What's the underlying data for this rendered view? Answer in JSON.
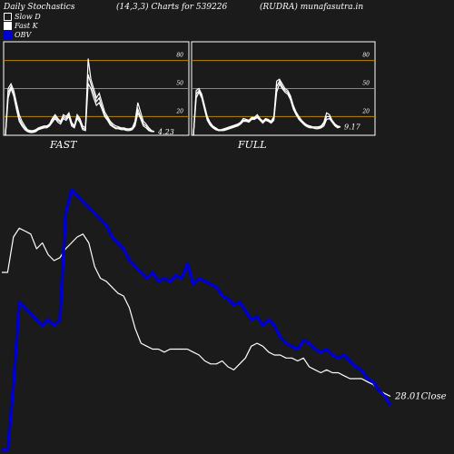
{
  "header": {
    "left": "Daily Stochastics",
    "middle": "(14,3,3) Charts for 539226",
    "right": "(RUDRA) munafasutra.in"
  },
  "legend": {
    "slow_d": "Slow  D",
    "fast_k": "Fast K",
    "obv": "OBV"
  },
  "colors": {
    "background": "#1b1b1b",
    "panel_border": "#ffffff",
    "level_line": "#b8860b",
    "stoch_line": "#ffffff",
    "price_line": "#ffffff",
    "obv_line": "#0000cc"
  },
  "chart_data": [
    {
      "type": "line",
      "name": "FAST",
      "title": "FAST",
      "ylim": [
        0,
        100
      ],
      "levels": [
        20,
        50,
        80
      ],
      "tick_labels": [
        "20",
        "50",
        "80"
      ],
      "last_value_label": "4.23",
      "series": [
        {
          "values": [
            0,
            50,
            55,
            48,
            35,
            22,
            15,
            10,
            6,
            5,
            5,
            6,
            8,
            9,
            10,
            10,
            12,
            18,
            22,
            18,
            15,
            22,
            20,
            24,
            14,
            10,
            22,
            18,
            10,
            8,
            82,
            60,
            50,
            40,
            45,
            35,
            25,
            20,
            15,
            12,
            10,
            9,
            8,
            8,
            7,
            7,
            8,
            15,
            35,
            25,
            15,
            12,
            8,
            5,
            4
          ]
        },
        {
          "values": [
            0,
            45,
            52,
            44,
            30,
            18,
            12,
            8,
            5,
            4,
            4,
            5,
            7,
            8,
            9,
            9,
            11,
            16,
            20,
            16,
            14,
            20,
            18,
            22,
            12,
            9,
            20,
            16,
            8,
            6,
            65,
            55,
            45,
            36,
            40,
            30,
            22,
            18,
            13,
            10,
            8,
            8,
            7,
            7,
            6,
            6,
            7,
            12,
            28,
            20,
            12,
            10,
            6,
            4,
            4
          ]
        },
        {
          "values": [
            0,
            40,
            50,
            42,
            28,
            15,
            10,
            6,
            4,
            3,
            3,
            4,
            6,
            7,
            8,
            8,
            10,
            14,
            18,
            14,
            12,
            18,
            16,
            20,
            10,
            8,
            18,
            14,
            6,
            5,
            55,
            50,
            40,
            32,
            35,
            28,
            20,
            16,
            11,
            9,
            7,
            7,
            6,
            6,
            5,
            5,
            6,
            10,
            24,
            18,
            10,
            8,
            5,
            4,
            4
          ]
        }
      ]
    },
    {
      "type": "line",
      "name": "FULL",
      "title": "FULL",
      "ylim": [
        0,
        100
      ],
      "levels": [
        20,
        50,
        80
      ],
      "tick_labels": [
        "20",
        "50",
        "80"
      ],
      "last_value_label": "9.17",
      "series": [
        {
          "values": [
            0,
            48,
            50,
            44,
            32,
            20,
            14,
            10,
            8,
            6,
            6,
            7,
            8,
            9,
            10,
            11,
            12,
            14,
            18,
            17,
            16,
            19,
            19,
            22,
            18,
            15,
            18,
            17,
            15,
            20,
            58,
            60,
            55,
            50,
            48,
            42,
            32,
            25,
            20,
            16,
            13,
            11,
            10,
            9,
            9,
            9,
            10,
            14,
            24,
            22,
            16,
            12,
            10,
            9
          ]
        },
        {
          "values": [
            0,
            44,
            48,
            42,
            30,
            18,
            12,
            9,
            7,
            5,
            5,
            6,
            7,
            8,
            9,
            10,
            11,
            13,
            16,
            16,
            15,
            18,
            18,
            20,
            17,
            14,
            17,
            16,
            14,
            18,
            52,
            58,
            52,
            48,
            46,
            40,
            30,
            24,
            18,
            15,
            12,
            10,
            9,
            8,
            8,
            8,
            9,
            12,
            20,
            20,
            15,
            11,
            9,
            9
          ]
        },
        {
          "values": [
            0,
            40,
            46,
            40,
            28,
            16,
            11,
            8,
            6,
            5,
            5,
            5,
            6,
            7,
            8,
            9,
            10,
            12,
            15,
            15,
            14,
            17,
            17,
            19,
            16,
            13,
            16,
            15,
            13,
            16,
            46,
            55,
            50,
            46,
            44,
            38,
            28,
            22,
            17,
            14,
            11,
            9,
            8,
            8,
            7,
            7,
            8,
            10,
            17,
            18,
            14,
            10,
            8,
            9
          ]
        }
      ]
    },
    {
      "type": "line",
      "name": "price-obv",
      "last_value_label": "28.01Close",
      "series": [
        {
          "name": "Close",
          "values": [
            60,
            60,
            72,
            75,
            74,
            73,
            68,
            70,
            66,
            64,
            65,
            68,
            70,
            72,
            73,
            70,
            62,
            58,
            57,
            55,
            53,
            52,
            48,
            41,
            36,
            35,
            34,
            34,
            33,
            34,
            34,
            34,
            34,
            33,
            32,
            30,
            29,
            29,
            30,
            28,
            27,
            29,
            31,
            35,
            36,
            35,
            33,
            32,
            32,
            31,
            31,
            30,
            31,
            28,
            27,
            26,
            27,
            26,
            26,
            25,
            24,
            24,
            24,
            23,
            22,
            20,
            19,
            18
          ]
        },
        {
          "name": "OBV",
          "values": [
            0,
            0,
            22,
            50,
            48,
            46,
            44,
            42,
            44,
            42,
            44,
            80,
            88,
            86,
            84,
            82,
            80,
            78,
            76,
            72,
            70,
            68,
            64,
            62,
            60,
            58,
            60,
            57,
            58,
            57,
            59,
            58,
            63,
            56,
            58,
            57,
            56,
            55,
            52,
            51,
            49,
            50,
            47,
            44,
            45,
            42,
            44,
            42,
            38,
            36,
            35,
            34,
            37,
            36,
            34,
            33,
            34,
            32,
            31,
            32,
            30,
            28,
            27,
            24,
            23,
            20,
            18,
            15
          ]
        }
      ]
    }
  ]
}
